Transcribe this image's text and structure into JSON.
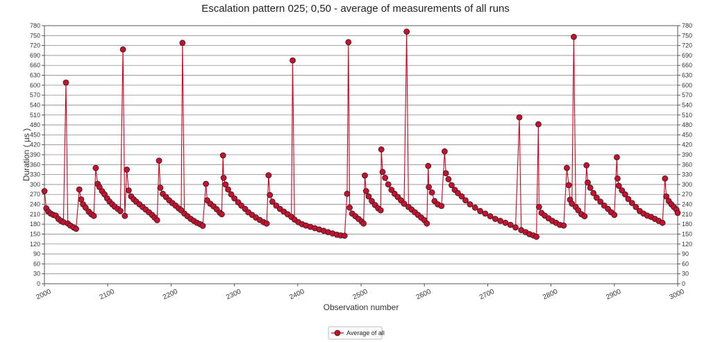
{
  "chart_data": {
    "type": "line",
    "title": "Escalation pattern 025; 0,50 - average of measurements of all runs",
    "xlabel": "Observation number",
    "ylabel": "Duration ( µs )",
    "xlim": [
      2000,
      3000
    ],
    "ylim": [
      0,
      780
    ],
    "x_ticks": [
      2000,
      2100,
      2200,
      2300,
      2400,
      2500,
      2600,
      2700,
      2800,
      2900,
      3000
    ],
    "y_ticks": [
      0,
      30,
      60,
      90,
      120,
      150,
      180,
      210,
      240,
      270,
      300,
      330,
      360,
      390,
      420,
      450,
      480,
      510,
      540,
      570,
      600,
      630,
      660,
      690,
      720,
      750,
      780
    ],
    "grid": true,
    "legend": "bottom-center",
    "series": [
      {
        "name": "Average of all",
        "color": "#d0021b",
        "marker_fill": "#c8102e",
        "marker_edge": "#222222",
        "points": [
          [
            2000,
            280
          ],
          [
            2003,
            228
          ],
          [
            2006,
            218
          ],
          [
            2010,
            212
          ],
          [
            2014,
            208
          ],
          [
            2018,
            206
          ],
          [
            2022,
            196
          ],
          [
            2026,
            190
          ],
          [
            2030,
            186
          ],
          [
            2034,
            608
          ],
          [
            2037,
            182
          ],
          [
            2041,
            176
          ],
          [
            2046,
            170
          ],
          [
            2050,
            166
          ],
          [
            2055,
            285
          ],
          [
            2058,
            255
          ],
          [
            2061,
            240
          ],
          [
            2065,
            230
          ],
          [
            2070,
            218
          ],
          [
            2074,
            210
          ],
          [
            2078,
            205
          ],
          [
            2081,
            350
          ],
          [
            2084,
            302
          ],
          [
            2087,
            292
          ],
          [
            2091,
            280
          ],
          [
            2095,
            270
          ],
          [
            2099,
            258
          ],
          [
            2103,
            248
          ],
          [
            2107,
            240
          ],
          [
            2111,
            233
          ],
          [
            2116,
            226
          ],
          [
            2120,
            220
          ],
          [
            2124,
            708
          ],
          [
            2127,
            205
          ],
          [
            2130,
            345
          ],
          [
            2133,
            282
          ],
          [
            2137,
            264
          ],
          [
            2141,
            255
          ],
          [
            2145,
            248
          ],
          [
            2150,
            240
          ],
          [
            2155,
            232
          ],
          [
            2160,
            224
          ],
          [
            2165,
            216
          ],
          [
            2170,
            208
          ],
          [
            2174,
            200
          ],
          [
            2178,
            192
          ],
          [
            2181,
            372
          ],
          [
            2183,
            290
          ],
          [
            2187,
            272
          ],
          [
            2192,
            262
          ],
          [
            2197,
            252
          ],
          [
            2202,
            244
          ],
          [
            2207,
            236
          ],
          [
            2212,
            228
          ],
          [
            2216,
            222
          ],
          [
            2218,
            728
          ],
          [
            2221,
            212
          ],
          [
            2226,
            204
          ],
          [
            2231,
            196
          ],
          [
            2236,
            190
          ],
          [
            2241,
            184
          ],
          [
            2246,
            180
          ],
          [
            2250,
            175
          ],
          [
            2255,
            302
          ],
          [
            2257,
            252
          ],
          [
            2262,
            242
          ],
          [
            2267,
            234
          ],
          [
            2272,
            225
          ],
          [
            2277,
            215
          ],
          [
            2280,
            210
          ],
          [
            2282,
            388
          ],
          [
            2283,
            320
          ],
          [
            2286,
            300
          ],
          [
            2290,
            285
          ],
          [
            2295,
            270
          ],
          [
            2300,
            258
          ],
          [
            2306,
            246
          ],
          [
            2311,
            236
          ],
          [
            2317,
            226
          ],
          [
            2322,
            216
          ],
          [
            2328,
            208
          ],
          [
            2334,
            200
          ],
          [
            2340,
            193
          ],
          [
            2346,
            186
          ],
          [
            2351,
            182
          ],
          [
            2354,
            328
          ],
          [
            2356,
            268
          ],
          [
            2360,
            248
          ],
          [
            2366,
            236
          ],
          [
            2372,
            226
          ],
          [
            2378,
            218
          ],
          [
            2384,
            210
          ],
          [
            2390,
            202
          ],
          [
            2392,
            675
          ],
          [
            2395,
            194
          ],
          [
            2401,
            186
          ],
          [
            2407,
            180
          ],
          [
            2413,
            176
          ],
          [
            2420,
            172
          ],
          [
            2427,
            168
          ],
          [
            2434,
            164
          ],
          [
            2441,
            160
          ],
          [
            2448,
            156
          ],
          [
            2455,
            152
          ],
          [
            2462,
            148
          ],
          [
            2468,
            146
          ],
          [
            2474,
            145
          ],
          [
            2478,
            272
          ],
          [
            2480,
            730
          ],
          [
            2482,
            230
          ],
          [
            2486,
            212
          ],
          [
            2491,
            204
          ],
          [
            2496,
            196
          ],
          [
            2501,
            188
          ],
          [
            2504,
            182
          ],
          [
            2506,
            327
          ],
          [
            2508,
            280
          ],
          [
            2512,
            264
          ],
          [
            2517,
            250
          ],
          [
            2522,
            238
          ],
          [
            2527,
            228
          ],
          [
            2531,
            222
          ],
          [
            2532,
            406
          ],
          [
            2534,
            338
          ],
          [
            2538,
            320
          ],
          [
            2543,
            300
          ],
          [
            2548,
            284
          ],
          [
            2553,
            272
          ],
          [
            2558,
            262
          ],
          [
            2563,
            252
          ],
          [
            2568,
            242
          ],
          [
            2572,
            762
          ],
          [
            2575,
            232
          ],
          [
            2580,
            224
          ],
          [
            2585,
            216
          ],
          [
            2590,
            208
          ],
          [
            2595,
            200
          ],
          [
            2600,
            192
          ],
          [
            2604,
            182
          ],
          [
            2606,
            356
          ],
          [
            2607,
            292
          ],
          [
            2612,
            276
          ],
          [
            2616,
            250
          ],
          [
            2621,
            240
          ],
          [
            2627,
            235
          ],
          [
            2632,
            400
          ],
          [
            2634,
            334
          ],
          [
            2638,
            316
          ],
          [
            2643,
            298
          ],
          [
            2648,
            284
          ],
          [
            2653,
            274
          ],
          [
            2659,
            264
          ],
          [
            2665,
            252
          ],
          [
            2672,
            240
          ],
          [
            2680,
            230
          ],
          [
            2688,
            220
          ],
          [
            2696,
            212
          ],
          [
            2704,
            204
          ],
          [
            2712,
            196
          ],
          [
            2720,
            190
          ],
          [
            2728,
            184
          ],
          [
            2736,
            178
          ],
          [
            2744,
            170
          ],
          [
            2750,
            503
          ],
          [
            2753,
            162
          ],
          [
            2760,
            156
          ],
          [
            2766,
            150
          ],
          [
            2772,
            146
          ],
          [
            2777,
            142
          ],
          [
            2780,
            482
          ],
          [
            2781,
            232
          ],
          [
            2785,
            214
          ],
          [
            2790,
            206
          ],
          [
            2796,
            198
          ],
          [
            2802,
            190
          ],
          [
            2808,
            184
          ],
          [
            2814,
            178
          ],
          [
            2820,
            176
          ],
          [
            2825,
            350
          ],
          [
            2828,
            298
          ],
          [
            2830,
            254
          ],
          [
            2833,
            242
          ],
          [
            2836,
            746
          ],
          [
            2839,
            232
          ],
          [
            2843,
            222
          ],
          [
            2848,
            210
          ],
          [
            2853,
            204
          ],
          [
            2856,
            358
          ],
          [
            2858,
            306
          ],
          [
            2862,
            290
          ],
          [
            2867,
            274
          ],
          [
            2872,
            260
          ],
          [
            2878,
            248
          ],
          [
            2884,
            236
          ],
          [
            2890,
            226
          ],
          [
            2895,
            216
          ],
          [
            2900,
            208
          ],
          [
            2904,
            382
          ],
          [
            2905,
            318
          ],
          [
            2907,
            296
          ],
          [
            2912,
            282
          ],
          [
            2917,
            270
          ],
          [
            2922,
            256
          ],
          [
            2928,
            244
          ],
          [
            2934,
            232
          ],
          [
            2940,
            220
          ],
          [
            2946,
            212
          ],
          [
            2952,
            206
          ],
          [
            2958,
            202
          ],
          [
            2964,
            196
          ],
          [
            2970,
            190
          ],
          [
            2976,
            184
          ],
          [
            2980,
            318
          ],
          [
            2982,
            264
          ],
          [
            2986,
            250
          ],
          [
            2990,
            240
          ],
          [
            2994,
            232
          ],
          [
            2998,
            224
          ],
          [
            3000,
            214
          ]
        ]
      }
    ]
  }
}
